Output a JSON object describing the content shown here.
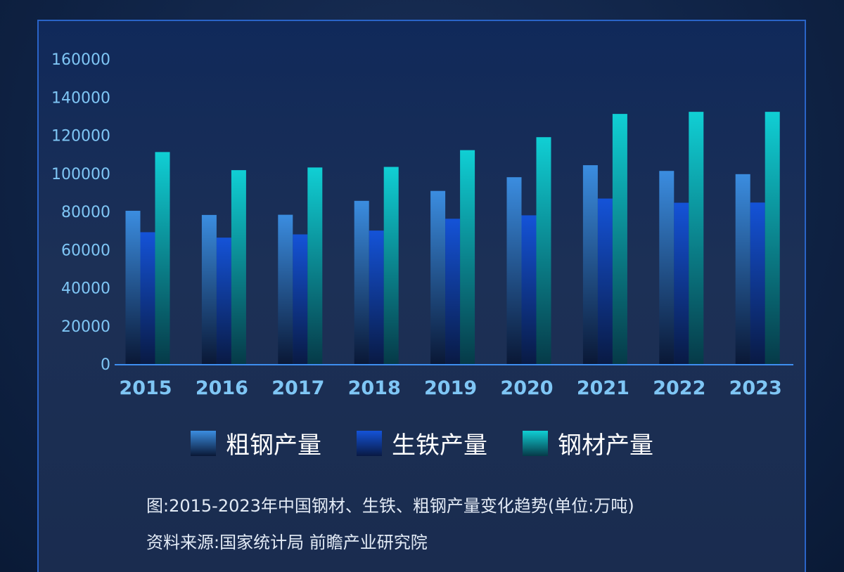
{
  "chart_data": {
    "type": "bar",
    "categories": [
      "2015",
      "2016",
      "2017",
      "2018",
      "2019",
      "2020",
      "2021",
      "2022",
      "2023"
    ],
    "series": [
      {
        "name": "粗钢产量",
        "values": [
          80383,
          78200,
          78300,
          85600,
          90800,
          98000,
          104300,
          101300,
          99600
        ],
        "color": "#3b8de0",
        "color_bottom": "#0a1836"
      },
      {
        "name": "生铁产量",
        "values": [
          69141,
          66300,
          68000,
          70000,
          76200,
          78000,
          86800,
          84600,
          84700
        ],
        "color": "#1453d8",
        "color_bottom": "#091a44"
      },
      {
        "name": "钢材产量",
        "values": [
          111200,
          101700,
          103100,
          103400,
          112200,
          119000,
          131200,
          132300,
          132300
        ],
        "color": "#10cfd4",
        "color_bottom": "#063a48"
      }
    ],
    "yticks": [
      "0",
      "20000",
      "40000",
      "60000",
      "80000",
      "100000",
      "120000",
      "140000",
      "160000"
    ],
    "ylim": [
      0,
      160000
    ],
    "grid": false,
    "legend_position": "bottom"
  },
  "caption": {
    "title": "图:2015-2023年中国钢材、生铁、粗钢产量变化趋势(单位:万吨)",
    "source": "资料来源:国家统计局  前瞻产业研究院"
  }
}
